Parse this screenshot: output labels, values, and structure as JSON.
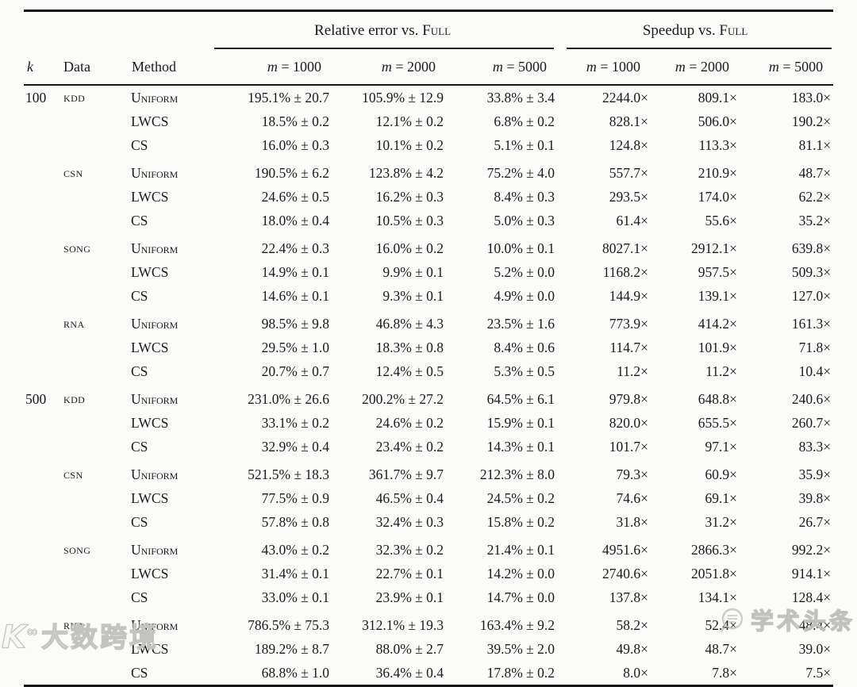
{
  "table": {
    "group_headers": [
      {
        "prefix": "Relative error vs.",
        "smallcaps": "Full"
      },
      {
        "prefix": "Speedup vs.",
        "smallcaps": "Full"
      }
    ],
    "col_headers": {
      "k": "k",
      "data": "Data",
      "method": "Method"
    },
    "m_headers": [
      {
        "var": "m",
        "eq": "= 1000"
      },
      {
        "var": "m",
        "eq": "= 2000"
      },
      {
        "var": "m",
        "eq": "= 5000"
      },
      {
        "var": "m",
        "eq": "= 1000"
      },
      {
        "var": "m",
        "eq": "= 2000"
      },
      {
        "var": "m",
        "eq": "= 5000"
      }
    ],
    "rows": [
      {
        "k": "100",
        "data": "KDD",
        "method": "Uniform",
        "sep": false,
        "rel": [
          "195.1% ± 20.7",
          "105.9% ± 12.9",
          "33.8% ± 3.4"
        ],
        "speed": [
          "2244.0×",
          "809.1×",
          "183.0×"
        ]
      },
      {
        "k": "",
        "data": "",
        "method": "LWCS",
        "sep": false,
        "rel": [
          "18.5% ± 0.2",
          "12.1% ± 0.2",
          "6.8% ± 0.2"
        ],
        "speed": [
          "828.1×",
          "506.0×",
          "190.2×"
        ]
      },
      {
        "k": "",
        "data": "",
        "method": "CS",
        "sep": false,
        "rel": [
          "16.0% ± 0.3",
          "10.1% ± 0.2",
          "5.1% ± 0.1"
        ],
        "speed": [
          "124.8×",
          "113.3×",
          "81.1×"
        ]
      },
      {
        "k": "",
        "data": "CSN",
        "method": "Uniform",
        "sep": true,
        "rel": [
          "190.5% ± 6.2",
          "123.8% ± 4.2",
          "75.2% ± 4.0"
        ],
        "speed": [
          "557.7×",
          "210.9×",
          "48.7×"
        ]
      },
      {
        "k": "",
        "data": "",
        "method": "LWCS",
        "sep": false,
        "rel": [
          "24.6% ± 0.5",
          "16.2% ± 0.3",
          "8.4% ± 0.3"
        ],
        "speed": [
          "293.5×",
          "174.0×",
          "62.2×"
        ]
      },
      {
        "k": "",
        "data": "",
        "method": "CS",
        "sep": false,
        "rel": [
          "18.0% ± 0.4",
          "10.5% ± 0.3",
          "5.0% ± 0.3"
        ],
        "speed": [
          "61.4×",
          "55.6×",
          "35.2×"
        ]
      },
      {
        "k": "",
        "data": "SONG",
        "method": "Uniform",
        "sep": true,
        "rel": [
          "22.4% ± 0.3",
          "16.0% ± 0.2",
          "10.0% ± 0.1"
        ],
        "speed": [
          "8027.1×",
          "2912.1×",
          "639.8×"
        ]
      },
      {
        "k": "",
        "data": "",
        "method": "LWCS",
        "sep": false,
        "rel": [
          "14.9% ± 0.1",
          "9.9% ± 0.1",
          "5.2% ± 0.0"
        ],
        "speed": [
          "1168.2×",
          "957.5×",
          "509.3×"
        ]
      },
      {
        "k": "",
        "data": "",
        "method": "CS",
        "sep": false,
        "rel": [
          "14.6% ± 0.1",
          "9.3% ± 0.1",
          "4.9% ± 0.0"
        ],
        "speed": [
          "144.9×",
          "139.1×",
          "127.0×"
        ]
      },
      {
        "k": "",
        "data": "RNA",
        "method": "Uniform",
        "sep": true,
        "rel": [
          "98.5% ± 9.8",
          "46.8% ± 4.3",
          "23.5% ± 1.6"
        ],
        "speed": [
          "773.9×",
          "414.2×",
          "161.3×"
        ]
      },
      {
        "k": "",
        "data": "",
        "method": "LWCS",
        "sep": false,
        "rel": [
          "29.5% ± 1.0",
          "18.3% ± 0.8",
          "8.4% ± 0.6"
        ],
        "speed": [
          "114.7×",
          "101.9×",
          "71.8×"
        ]
      },
      {
        "k": "",
        "data": "",
        "method": "CS",
        "sep": false,
        "rel": [
          "20.7% ± 0.7",
          "12.4% ± 0.5",
          "5.3% ± 0.5"
        ],
        "speed": [
          "11.2×",
          "11.2×",
          "10.4×"
        ]
      },
      {
        "k": "500",
        "data": "KDD",
        "method": "Uniform",
        "sep": true,
        "rel": [
          "231.0% ± 26.6",
          "200.2% ± 27.2",
          "64.5% ± 6.1"
        ],
        "speed": [
          "979.8×",
          "648.8×",
          "240.6×"
        ]
      },
      {
        "k": "",
        "data": "",
        "method": "LWCS",
        "sep": false,
        "rel": [
          "33.1% ± 0.2",
          "24.6% ± 0.2",
          "15.9% ± 0.1"
        ],
        "speed": [
          "820.0×",
          "655.5×",
          "260.7×"
        ]
      },
      {
        "k": "",
        "data": "",
        "method": "CS",
        "sep": false,
        "rel": [
          "32.9% ± 0.4",
          "23.4% ± 0.2",
          "14.3% ± 0.1"
        ],
        "speed": [
          "101.7×",
          "97.1×",
          "83.3×"
        ]
      },
      {
        "k": "",
        "data": "CSN",
        "method": "Uniform",
        "sep": true,
        "rel": [
          "521.5% ± 18.3",
          "361.7% ± 9.7",
          "212.3% ± 8.0"
        ],
        "speed": [
          "79.3×",
          "60.9×",
          "35.9×"
        ]
      },
      {
        "k": "",
        "data": "",
        "method": "LWCS",
        "sep": false,
        "rel": [
          "77.5% ± 0.9",
          "46.5% ± 0.4",
          "24.5% ± 0.2"
        ],
        "speed": [
          "74.6×",
          "69.1×",
          "39.8×"
        ]
      },
      {
        "k": "",
        "data": "",
        "method": "CS",
        "sep": false,
        "rel": [
          "57.8% ± 0.8",
          "32.4% ± 0.3",
          "15.8% ± 0.2"
        ],
        "speed": [
          "31.8×",
          "31.2×",
          "26.7×"
        ]
      },
      {
        "k": "",
        "data": "SONG",
        "method": "Uniform",
        "sep": true,
        "rel": [
          "43.0% ± 0.2",
          "32.3% ± 0.2",
          "21.4% ± 0.1"
        ],
        "speed": [
          "4951.6×",
          "2866.3×",
          "992.2×"
        ]
      },
      {
        "k": "",
        "data": "",
        "method": "LWCS",
        "sep": false,
        "rel": [
          "31.4% ± 0.1",
          "22.7% ± 0.1",
          "14.2% ± 0.0"
        ],
        "speed": [
          "2740.6×",
          "2051.8×",
          "914.1×"
        ]
      },
      {
        "k": "",
        "data": "",
        "method": "CS",
        "sep": false,
        "rel": [
          "33.0% ± 0.1",
          "23.9% ± 0.1",
          "14.7% ± 0.0"
        ],
        "speed": [
          "137.8×",
          "134.1×",
          "128.4×"
        ]
      },
      {
        "k": "",
        "data": "RNA",
        "method": "Uniform",
        "sep": true,
        "rel": [
          "786.5% ± 75.3",
          "312.1% ± 19.3",
          "163.4% ± 9.2"
        ],
        "speed": [
          "58.2×",
          "52.4×",
          "48.4×"
        ]
      },
      {
        "k": "",
        "data": "",
        "method": "LWCS",
        "sep": false,
        "rel": [
          "189.2% ± 8.7",
          "88.0% ± 2.7",
          "39.5% ± 2.0"
        ],
        "speed": [
          "49.8×",
          "48.7×",
          "39.0×"
        ]
      },
      {
        "k": "",
        "data": "",
        "method": "CS",
        "sep": false,
        "rel": [
          "68.8% ± 1.0",
          "36.4% ± 0.4",
          "17.8% ± 0.2"
        ],
        "speed": [
          "8.0×",
          "7.8×",
          "7.5×"
        ]
      }
    ]
  },
  "watermarks": {
    "bottom_left": {
      "logo_text": "K",
      "logo_sup": "∞",
      "text": "大数跨境"
    },
    "bottom_right": {
      "text": "学术头条"
    }
  }
}
